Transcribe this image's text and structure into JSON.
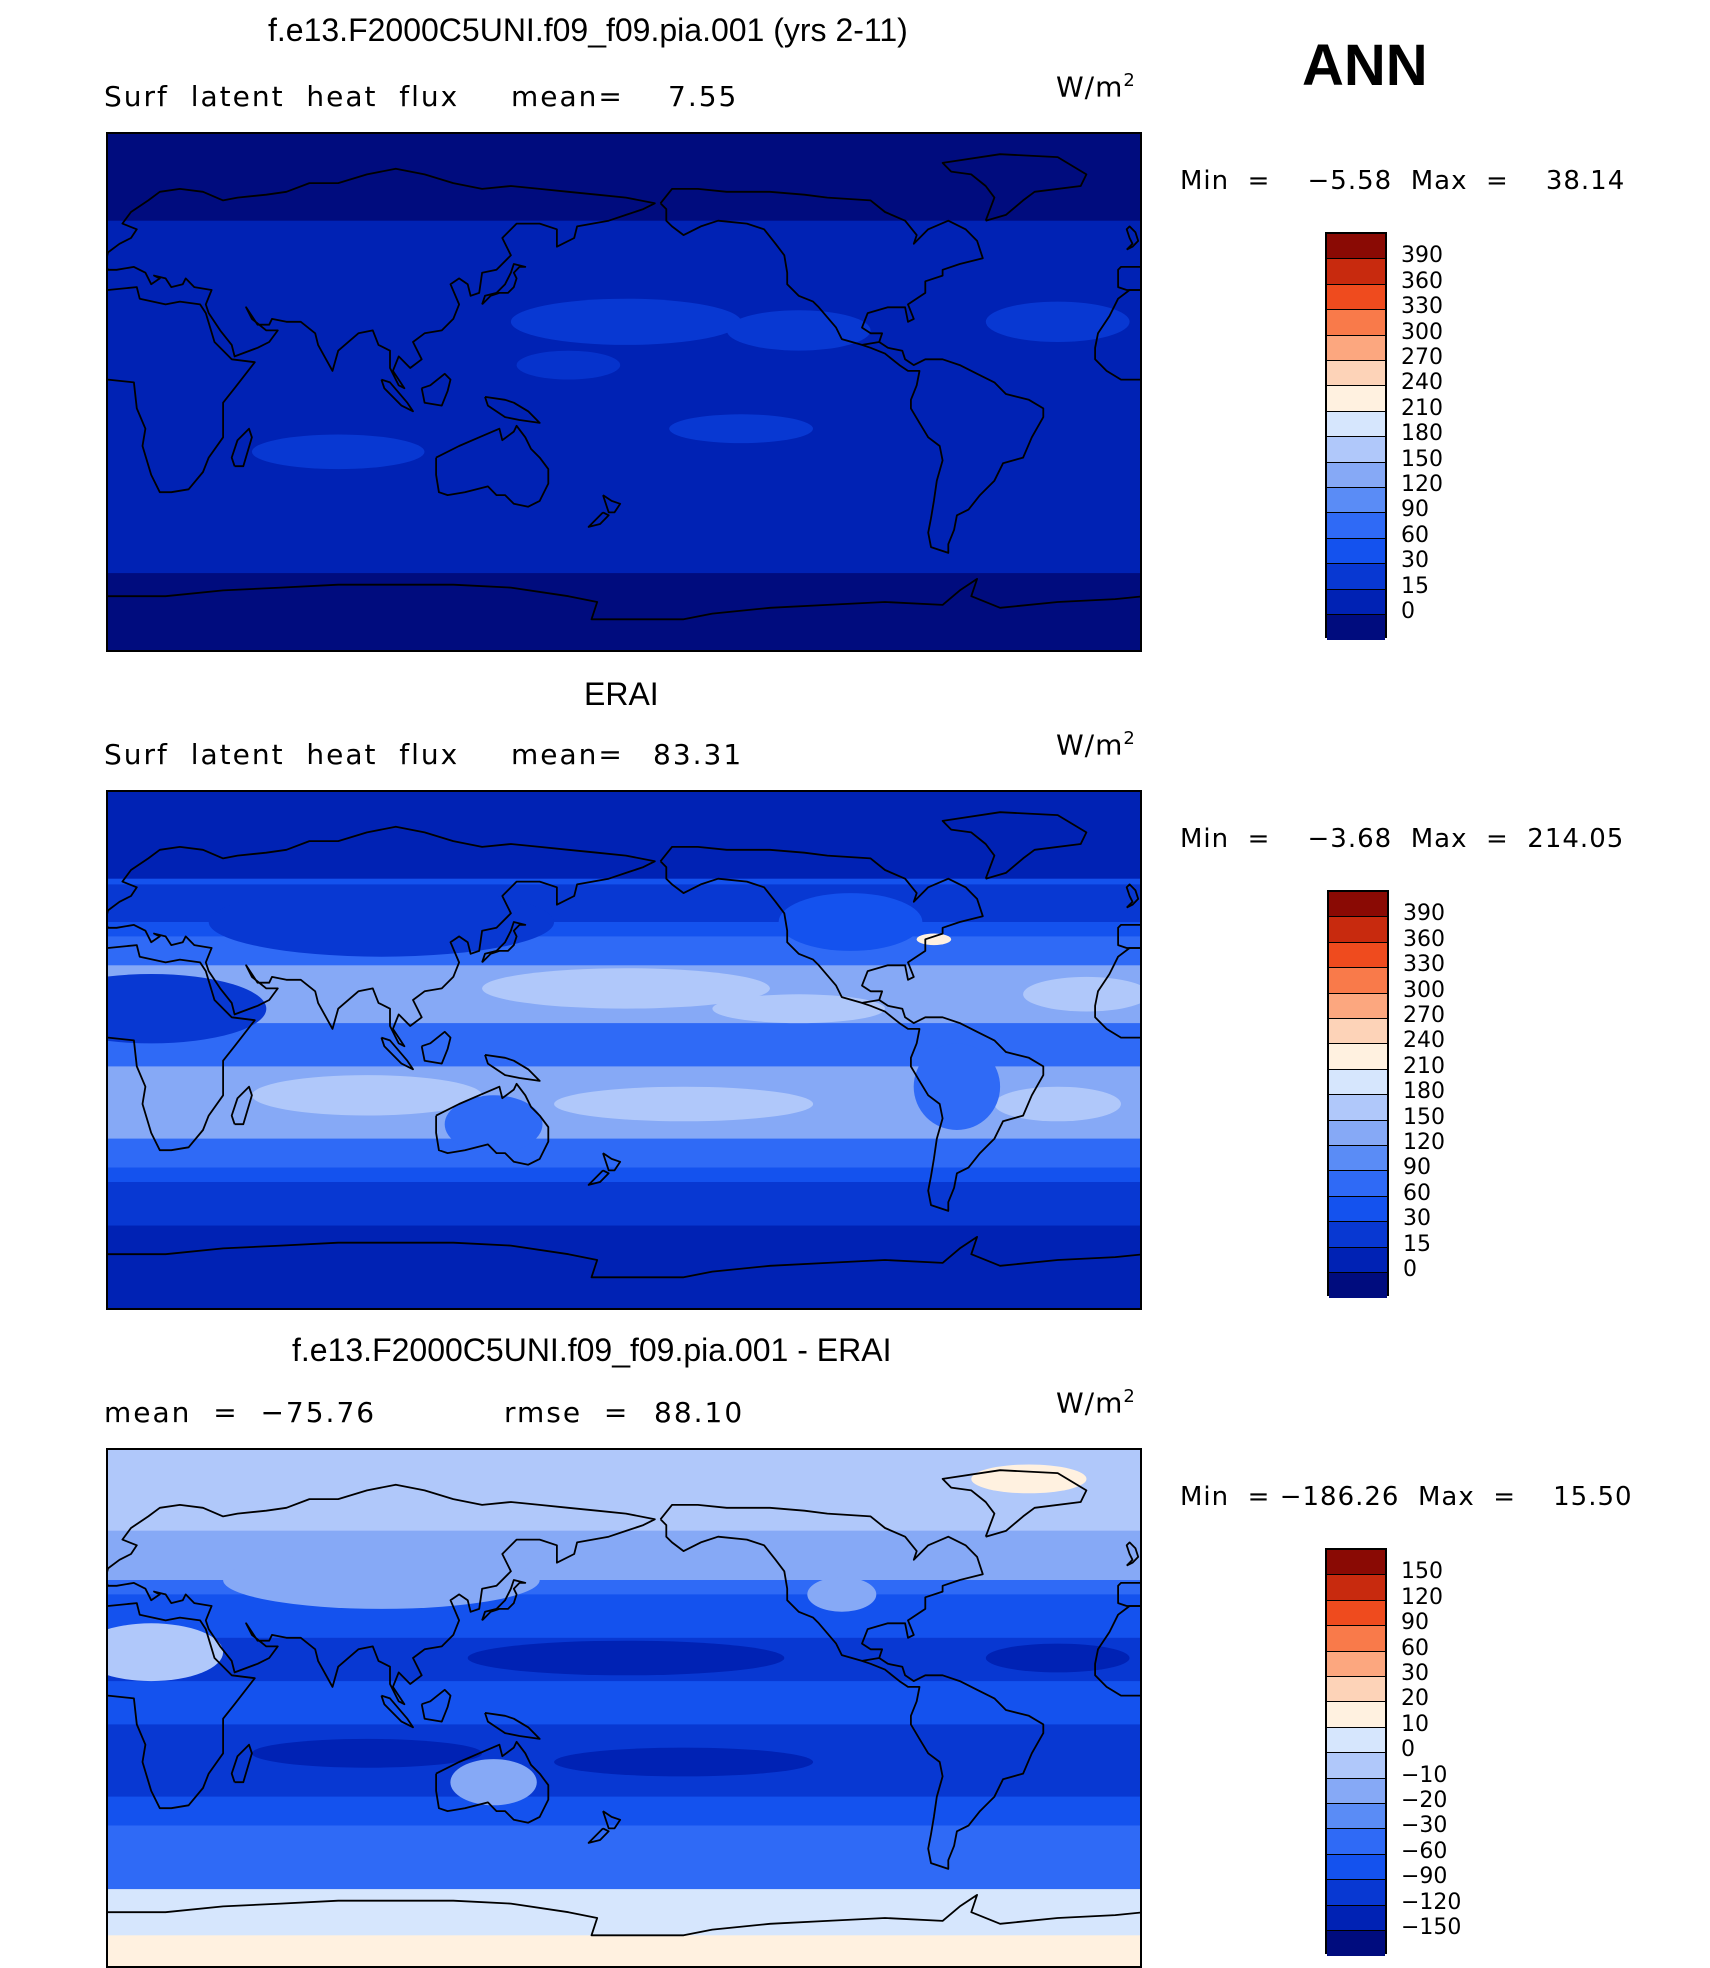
{
  "season": "ANN",
  "panels": [
    {
      "title": "f.e13.F2000C5UNI.f09_f09.pia.001 (yrs 2-11)",
      "left_label": "Surf  latent  heat  flux",
      "mid_label": "mean=",
      "mid_value": "7.55",
      "units_base": "W/m",
      "units_exp": "2",
      "minmax": "Min  =    −5.58  Max  =    38.14",
      "colors": [
        "#000c7e",
        "#0022b4",
        "#0838d2",
        "#1452ee",
        "#2f6af6",
        "#5a8cf6",
        "#86a9f6",
        "#b0c8fa",
        "#d6e6fd",
        "#fff1e0",
        "#fdd3b8",
        "#fca77f",
        "#f97a4a",
        "#ef4b1e",
        "#c82a0e",
        "#8a0a04"
      ],
      "levels": [
        "0",
        "15",
        "30",
        "60",
        "90",
        "120",
        "150",
        "180",
        "210",
        "240",
        "270",
        "300",
        "330",
        "360",
        "390"
      ]
    },
    {
      "title": "ERAI",
      "left_label": "Surf  latent  heat  flux",
      "mid_label": "mean=",
      "mid_value": "83.31",
      "units_base": "W/m",
      "units_exp": "2",
      "minmax": "Min  =    −3.68  Max  =  214.05",
      "colors": [
        "#000c7e",
        "#0022b4",
        "#0838d2",
        "#1452ee",
        "#2f6af6",
        "#5a8cf6",
        "#86a9f6",
        "#b0c8fa",
        "#d6e6fd",
        "#fff1e0",
        "#fdd3b8",
        "#fca77f",
        "#f97a4a",
        "#ef4b1e",
        "#c82a0e",
        "#8a0a04"
      ],
      "levels": [
        "0",
        "15",
        "30",
        "60",
        "90",
        "120",
        "150",
        "180",
        "210",
        "240",
        "270",
        "300",
        "330",
        "360",
        "390"
      ]
    },
    {
      "title": "f.e13.F2000C5UNI.f09_f09.pia.001 - ERAI",
      "left_label": "mean  =  −75.76",
      "mid_label": "rmse  =",
      "mid_value": "88.10",
      "units_base": "W/m",
      "units_exp": "2",
      "minmax": "Min  = −186.26  Max  =    15.50",
      "colors": [
        "#000c7e",
        "#0022b4",
        "#0838d2",
        "#1452ee",
        "#2f6af6",
        "#5a8cf6",
        "#86a9f6",
        "#b0c8fa",
        "#d6e6fd",
        "#fff1e0",
        "#fdd3b8",
        "#fca77f",
        "#f97a4a",
        "#ef4b1e",
        "#c82a0e",
        "#8a0a04"
      ],
      "levels": [
        "−150",
        "−120",
        "−90",
        "−60",
        "−30",
        "−20",
        "−10",
        "0",
        "10",
        "20",
        "30",
        "60",
        "90",
        "120",
        "150"
      ]
    }
  ],
  "chart_data": [
    {
      "type": "heatmap",
      "title": "f.e13.F2000C5UNI.f09_f09.pia.001 (yrs 2-11)",
      "variable": "Surf latent heat flux",
      "units": "W/m2",
      "mean": 7.55,
      "min": -5.58,
      "max": 38.14,
      "contour_levels": [
        0,
        15,
        30,
        60,
        90,
        120,
        150,
        180,
        210,
        240,
        270,
        300,
        330,
        360,
        390
      ]
    },
    {
      "type": "heatmap",
      "title": "ERAI",
      "variable": "Surf latent heat flux",
      "units": "W/m2",
      "mean": 83.31,
      "min": -3.68,
      "max": 214.05,
      "contour_levels": [
        0,
        15,
        30,
        60,
        90,
        120,
        150,
        180,
        210,
        240,
        270,
        300,
        330,
        360,
        390
      ]
    },
    {
      "type": "heatmap",
      "title": "f.e13.F2000C5UNI.f09_f09.pia.001 - ERAI",
      "units": "W/m2",
      "mean": -75.76,
      "rmse": 88.1,
      "min": -186.26,
      "max": 15.5,
      "contour_levels": [
        -150,
        -120,
        -90,
        -60,
        -30,
        -20,
        -10,
        0,
        10,
        20,
        30,
        60,
        90,
        120,
        150
      ]
    }
  ]
}
